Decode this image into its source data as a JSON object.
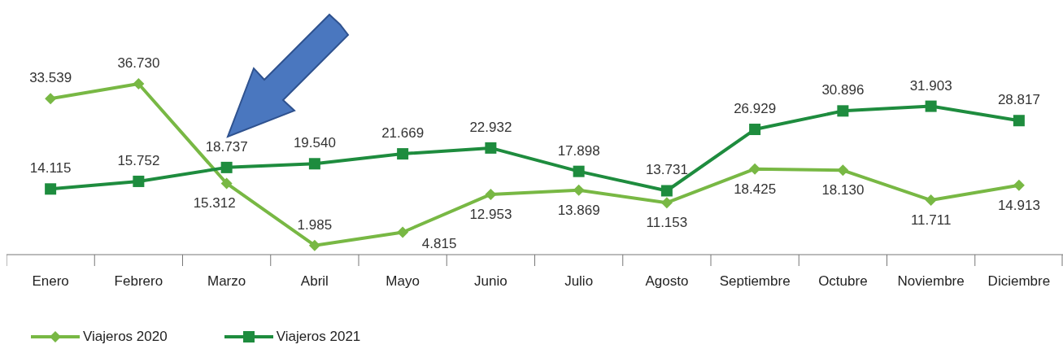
{
  "chart_data": {
    "type": "line",
    "categories": [
      "Enero",
      "Febrero",
      "Marzo",
      "Abril",
      "Mayo",
      "Junio",
      "Julio",
      "Agosto",
      "Septiembre",
      "Octubre",
      "Noviembre",
      "Diciembre"
    ],
    "series": [
      {
        "name": "Viajeros 2020",
        "color": "#78b844",
        "marker": "diamond",
        "values": [
          33539,
          36730,
          15312,
          1985,
          4815,
          12953,
          13869,
          11153,
          18425,
          18130,
          11711,
          14913
        ],
        "value_labels": [
          "33.539",
          "36.730",
          "15.312",
          "1.985",
          "4.815",
          "12.953",
          "13.869",
          "11.153",
          "18.425",
          "18.130",
          "11.711",
          "14.913"
        ]
      },
      {
        "name": "Viajeros 2021",
        "color": "#1e8c3e",
        "marker": "square",
        "values": [
          14115,
          15752,
          18737,
          19540,
          21669,
          22932,
          17898,
          13731,
          26929,
          30896,
          31903,
          28817
        ],
        "value_labels": [
          "14.115",
          "15.752",
          "18.737",
          "19.540",
          "21.669",
          "22.932",
          "17.898",
          "13.731",
          "26.929",
          "30.896",
          "31.903",
          "28.817"
        ]
      }
    ],
    "legend": "bottom left"
  }
}
